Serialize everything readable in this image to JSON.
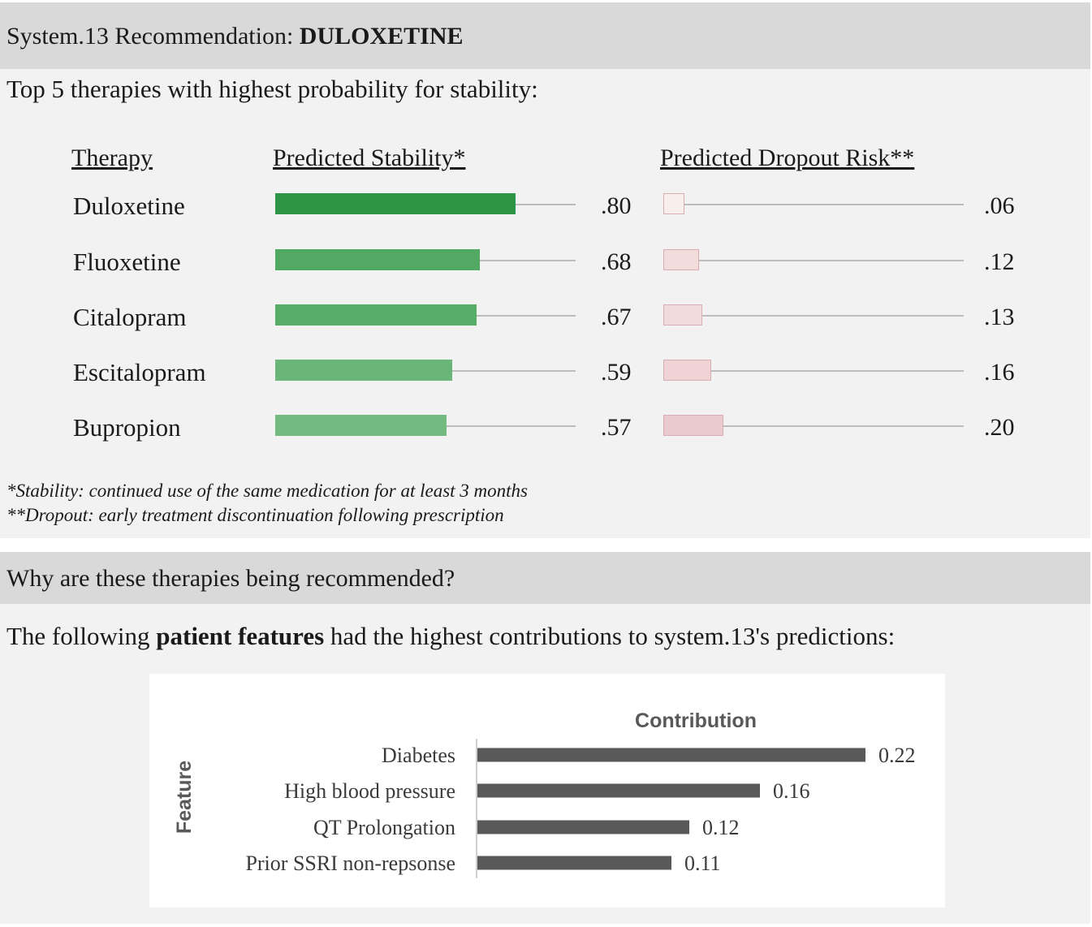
{
  "header": {
    "title_prefix": "System.13 Recommendation: ",
    "recommendation": "DULOXETINE"
  },
  "top_therapies": {
    "subtitle": "Top 5 therapies with highest probability for stability:",
    "columns": {
      "therapy": "Therapy",
      "stability": "Predicted Stability*",
      "dropout": "Predicted Dropout Risk**"
    },
    "rows": [
      {
        "therapy": "Duloxetine",
        "stability": 0.8,
        "stability_label": ".80",
        "dropout": 0.06,
        "dropout_label": ".06"
      },
      {
        "therapy": "Fluoxetine",
        "stability": 0.68,
        "stability_label": ".68",
        "dropout": 0.12,
        "dropout_label": ".12"
      },
      {
        "therapy": "Citalopram",
        "stability": 0.67,
        "stability_label": ".67",
        "dropout": 0.13,
        "dropout_label": ".13"
      },
      {
        "therapy": "Escitalopram",
        "stability": 0.59,
        "stability_label": ".59",
        "dropout": 0.16,
        "dropout_label": ".16"
      },
      {
        "therapy": "Bupropion",
        "stability": 0.57,
        "stability_label": ".57",
        "dropout": 0.2,
        "dropout_label": ".20"
      }
    ],
    "stability_colors": [
      "#2e9546",
      "#52a963",
      "#58ad68",
      "#6ab679",
      "#72ba80"
    ],
    "dropout_colors": [
      "#f8eeec",
      "#f3dcdc",
      "#f1dada",
      "#efd3d5",
      "#ecc9cc"
    ],
    "footnotes": [
      "*Stability: continued use of the same medication for at least 3 months",
      "**Dropout: early treatment discontinuation following prescription"
    ]
  },
  "why": {
    "heading": "Why are these therapies being recommended?",
    "intro_prefix": "The following ",
    "intro_bold": "patient features",
    "intro_suffix": " had the highest contributions to system.13's predictions:"
  },
  "chart_data": [
    {
      "type": "bar",
      "orientation": "horizontal",
      "categories": [
        "Duloxetine",
        "Fluoxetine",
        "Citalopram",
        "Escitalopram",
        "Bupropion"
      ],
      "series": [
        {
          "name": "Predicted Stability*",
          "values": [
            0.8,
            0.68,
            0.67,
            0.59,
            0.57
          ]
        },
        {
          "name": "Predicted Dropout Risk**",
          "values": [
            0.06,
            0.12,
            0.13,
            0.16,
            0.2
          ]
        }
      ],
      "xlim": [
        0,
        1
      ]
    },
    {
      "type": "bar",
      "orientation": "horizontal",
      "title": "Contribution",
      "ylabel": "Feature",
      "categories": [
        "Diabetes",
        "High blood pressure",
        "QT Prolongation",
        "Prior SSRI non-repsonse"
      ],
      "values": [
        0.22,
        0.16,
        0.12,
        0.11
      ],
      "value_labels": [
        "0.22",
        "0.16",
        "0.12",
        "0.11"
      ],
      "bar_color": "#595959",
      "xlim": [
        0,
        0.22
      ]
    }
  ]
}
